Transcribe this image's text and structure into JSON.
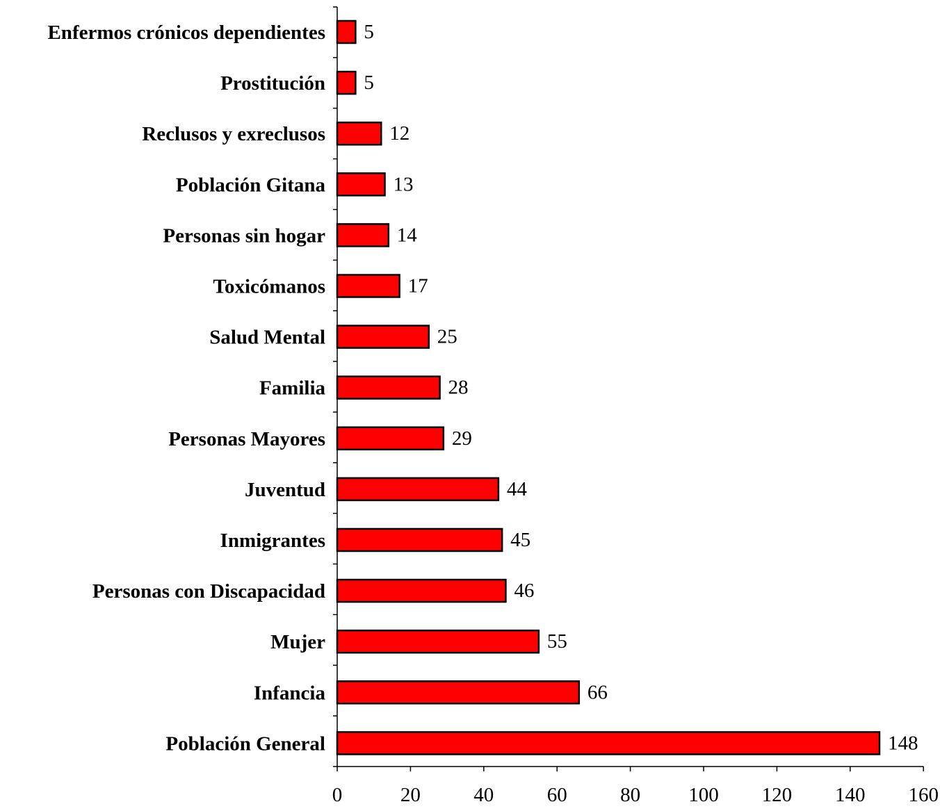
{
  "chart_data": {
    "type": "bar",
    "orientation": "horizontal",
    "title": "",
    "xlabel": "",
    "ylabel": "",
    "categories": [
      "Población General",
      "Infancia",
      "Mujer",
      "Personas con Discapacidad",
      "Inmigrantes",
      "Juventud",
      "Personas Mayores",
      "Familia",
      "Salud Mental",
      "Toxicómanos",
      "Personas sin hogar",
      "Población Gitana",
      "Reclusos y exreclusos",
      "Prostitución",
      "Enfermos crónicos dependientes"
    ],
    "values": [
      148,
      66,
      55,
      46,
      45,
      44,
      29,
      28,
      25,
      17,
      14,
      13,
      12,
      5,
      5
    ],
    "xlim": [
      0,
      160
    ],
    "x_ticks": [
      0,
      20,
      40,
      60,
      80,
      100,
      120,
      140,
      160
    ],
    "bar_color": "#FF0000",
    "grid": false,
    "legend": "none",
    "data_labels": true
  }
}
